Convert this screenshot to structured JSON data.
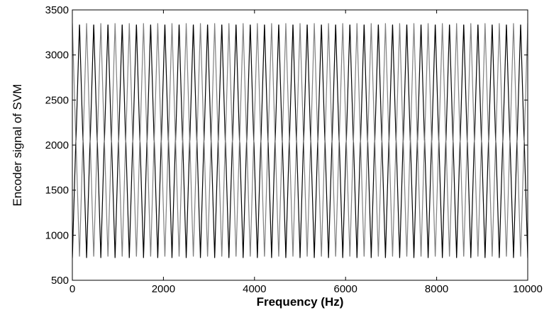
{
  "chart_data": {
    "type": "line",
    "title": "",
    "xlabel": "Frequency (Hz)",
    "ylabel": "Encoder signal of SVM",
    "xlim": [
      0,
      10000
    ],
    "ylim": [
      500,
      3500
    ],
    "x_ticks": [
      0,
      2000,
      4000,
      6000,
      8000,
      10000
    ],
    "y_ticks": [
      500,
      1000,
      1500,
      2000,
      2500,
      3000,
      3500
    ],
    "x_tick_labels": [
      "0",
      "2000",
      "4000",
      "6000",
      "8000",
      "10000"
    ],
    "y_tick_labels": [
      "500",
      "1000",
      "1500",
      "2000",
      "2500",
      "3000",
      "3500"
    ],
    "grid": false,
    "legend": false,
    "series": [
      {
        "color": "#000000",
        "form": "triangular carrier with superimposed high-frequency ripple at the peaks and troughs",
        "min": 650,
        "max": 3450,
        "cycles_over_x_range": 32,
        "ripple_cycles_per_carrier_cycle": 8,
        "ripple_amplitude": 130,
        "phase": 0.0
      },
      {
        "color": "#808080",
        "form": "triangular carrier with superimposed high-frequency ripple at the peaks and troughs",
        "min": 650,
        "max": 3450,
        "cycles_over_x_range": 32,
        "ripple_cycles_per_carrier_cycle": 8,
        "ripple_amplitude": 130,
        "phase": 0.5
      }
    ]
  }
}
